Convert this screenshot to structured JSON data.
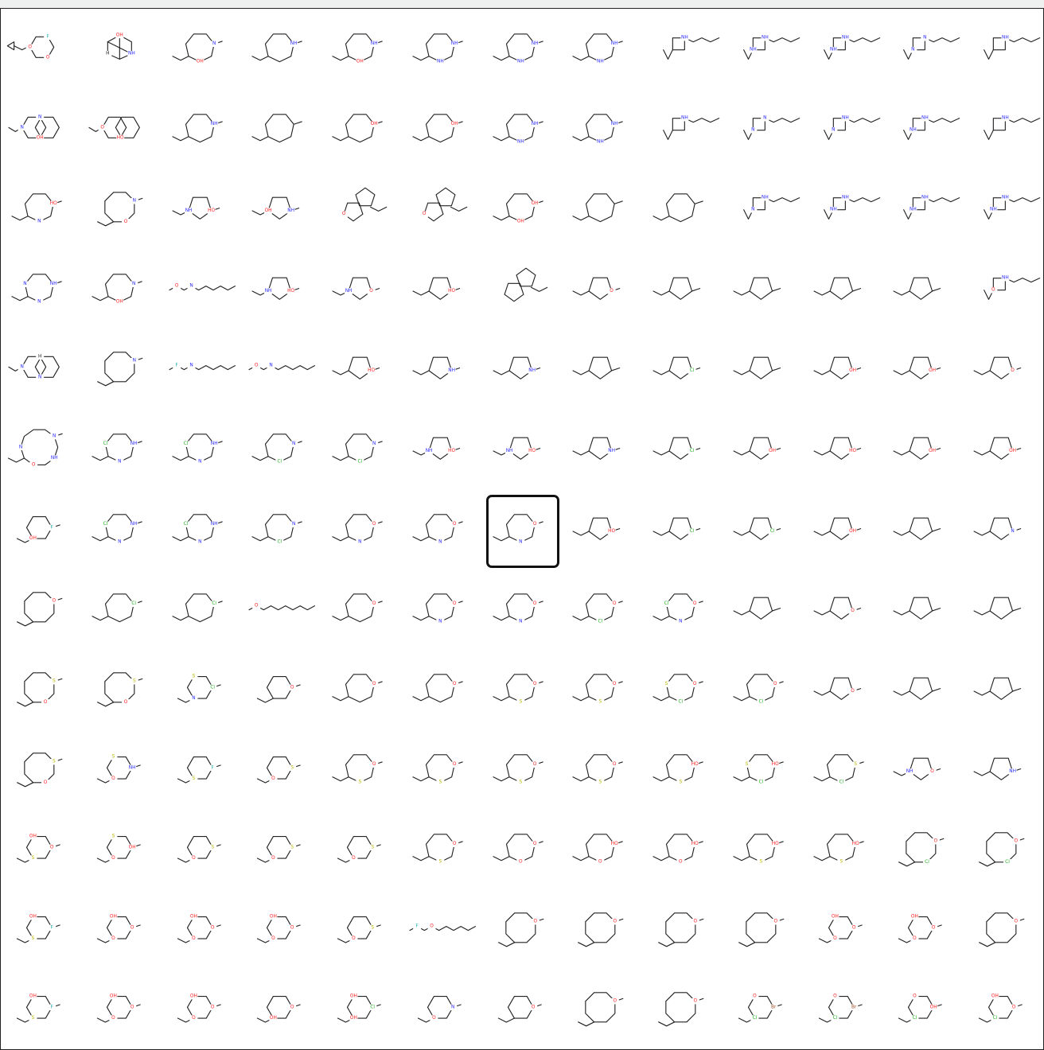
{
  "grid": {
    "rows": 13,
    "cols": 13,
    "selected": {
      "row": 6,
      "col": 6
    }
  },
  "colors": {
    "bond": "#222222",
    "N": "#2b2bff",
    "O": "#ff2020",
    "S": "#b8b800",
    "Cl": "#22b022",
    "F": "#22b0b0",
    "Br": "#a0522d",
    "highlight": "#111111"
  },
  "cells": [
    {
      "shape": "cyclopropyl",
      "labels": [
        "O",
        "O",
        "F"
      ]
    },
    {
      "shape": "cage",
      "labels": [
        "OH",
        "NH",
        "H"
      ]
    },
    {
      "shape": "ring7",
      "labels": [
        "N",
        "OH"
      ]
    },
    {
      "shape": "ring7",
      "labels": [
        "NH"
      ]
    },
    {
      "shape": "ring7",
      "labels": [
        "NH",
        "OH"
      ]
    },
    {
      "shape": "ring7",
      "labels": [
        "NH",
        "NH"
      ]
    },
    {
      "shape": "ring7",
      "labels": [
        "NH",
        "NH"
      ]
    },
    {
      "shape": "ring7",
      "labels": [
        "NH",
        "NH"
      ]
    },
    {
      "shape": "ring4",
      "labels": [
        "NH"
      ]
    },
    {
      "shape": "ring4",
      "labels": [
        "NH",
        "NH",
        "NH"
      ]
    },
    {
      "shape": "ring4",
      "labels": [
        "NH",
        "NH",
        "NH"
      ]
    },
    {
      "shape": "ring4",
      "labels": [
        "NH",
        "N",
        "N"
      ]
    },
    {
      "shape": "ring4",
      "labels": [
        "NH"
      ]
    },
    {
      "shape": "bicyclic",
      "labels": [
        "OH",
        "N",
        "N"
      ]
    },
    {
      "shape": "bicyclic",
      "labels": [
        "HO",
        "O"
      ]
    },
    {
      "shape": "ring7",
      "labels": [
        "NH"
      ]
    },
    {
      "shape": "ring7",
      "labels": []
    },
    {
      "shape": "ring7",
      "labels": [
        "OH"
      ]
    },
    {
      "shape": "ring7",
      "labels": [
        "OH"
      ]
    },
    {
      "shape": "ring7",
      "labels": [
        "NH",
        "NH"
      ]
    },
    {
      "shape": "ring7",
      "labels": [
        "NH",
        "NH"
      ]
    },
    {
      "shape": "ring4",
      "labels": [
        "NH"
      ]
    },
    {
      "shape": "ring4",
      "labels": [
        "NH",
        "N",
        "N"
      ]
    },
    {
      "shape": "ring4",
      "labels": [
        "NH",
        "N"
      ]
    },
    {
      "shape": "ring4",
      "labels": [
        "NH",
        "NH"
      ]
    },
    {
      "shape": "ring4",
      "labels": [
        "NH"
      ]
    },
    {
      "shape": "ring7",
      "labels": [
        "HO",
        "N"
      ]
    },
    {
      "shape": "ring8",
      "labels": [
        "N",
        "O"
      ]
    },
    {
      "shape": "ring5",
      "labels": [
        "HO",
        "NH"
      ]
    },
    {
      "shape": "ring5",
      "labels": [
        "NH",
        "OH"
      ]
    },
    {
      "shape": "spiro",
      "labels": [
        "O"
      ]
    },
    {
      "shape": "spiro",
      "labels": [
        "O"
      ]
    },
    {
      "shape": "ring7",
      "labels": [
        "OH",
        "OH"
      ]
    },
    {
      "shape": "ring7",
      "labels": []
    },
    {
      "shape": "ring7",
      "labels": []
    },
    {
      "shape": "ring4",
      "labels": [
        "NH",
        "N"
      ]
    },
    {
      "shape": "ring4",
      "labels": [
        "NH",
        "NH"
      ]
    },
    {
      "shape": "ring4",
      "labels": [
        "NH",
        "NH"
      ]
    },
    {
      "shape": "ring4",
      "labels": [
        "NH",
        "NH"
      ]
    },
    {
      "shape": "ring7",
      "labels": [
        "NH",
        "N",
        "N"
      ]
    },
    {
      "shape": "ring7",
      "labels": [
        "N",
        "OH"
      ]
    },
    {
      "shape": "chain",
      "labels": [
        "O",
        "N"
      ]
    },
    {
      "shape": "ring5",
      "labels": [
        "HO",
        "NH"
      ]
    },
    {
      "shape": "ring5",
      "labels": [
        "O",
        "NH"
      ]
    },
    {
      "shape": "ring5",
      "labels": [
        "HO"
      ]
    },
    {
      "shape": "spiro",
      "labels": []
    },
    {
      "shape": "ring5",
      "labels": [
        "O"
      ]
    },
    {
      "shape": "ring5",
      "labels": []
    },
    {
      "shape": "ring5",
      "labels": []
    },
    {
      "shape": "ring5",
      "labels": []
    },
    {
      "shape": "ring5",
      "labels": []
    },
    {
      "shape": "ring4",
      "labels": [
        "NH",
        "O"
      ]
    },
    {
      "shape": "bicyclic",
      "labels": [
        "N",
        "N",
        "H"
      ]
    },
    {
      "shape": "ring8",
      "labels": [
        "N"
      ]
    },
    {
      "shape": "chain",
      "labels": [
        "F",
        "N"
      ]
    },
    {
      "shape": "chain",
      "labels": [
        "O",
        "N"
      ]
    },
    {
      "shape": "ring5",
      "labels": [
        "HO"
      ]
    },
    {
      "shape": "ring5",
      "labels": [
        "NH"
      ]
    },
    {
      "shape": "ring5",
      "labels": [
        "NH"
      ]
    },
    {
      "shape": "ring5",
      "labels": []
    },
    {
      "shape": "ring5",
      "labels": [
        "Cl"
      ]
    },
    {
      "shape": "ring5",
      "labels": []
    },
    {
      "shape": "ring5",
      "labels": [
        "OH"
      ]
    },
    {
      "shape": "ring5",
      "labels": [
        "OH"
      ]
    },
    {
      "shape": "ring5",
      "labels": [
        "O"
      ]
    },
    {
      "shape": "ring10",
      "labels": [
        "N",
        "NH",
        "O",
        "N"
      ]
    },
    {
      "shape": "ring7",
      "labels": [
        "NH",
        "N",
        "Cl"
      ]
    },
    {
      "shape": "ring7",
      "labels": [
        "NH",
        "N",
        "Cl"
      ]
    },
    {
      "shape": "ring7",
      "labels": [
        "N",
        "Cl"
      ]
    },
    {
      "shape": "ring7",
      "labels": [
        "N",
        "Cl"
      ]
    },
    {
      "shape": "ring5",
      "labels": [
        "HO",
        "NH"
      ]
    },
    {
      "shape": "ring5",
      "labels": [
        "HO",
        "NH"
      ]
    },
    {
      "shape": "ring5",
      "labels": [
        "NH"
      ]
    },
    {
      "shape": "ring5",
      "labels": [
        "Cl"
      ]
    },
    {
      "shape": "ring5",
      "labels": [
        "OH"
      ]
    },
    {
      "shape": "ring5",
      "labels": [
        "HO"
      ]
    },
    {
      "shape": "ring5",
      "labels": [
        "OH"
      ]
    },
    {
      "shape": "ring5",
      "labels": [
        "OH"
      ]
    },
    {
      "shape": "ring6",
      "labels": [
        "F",
        "OH"
      ]
    },
    {
      "shape": "ring7",
      "labels": [
        "NH",
        "N",
        "Cl"
      ]
    },
    {
      "shape": "ring7",
      "labels": [
        "NH",
        "N",
        "Cl"
      ]
    },
    {
      "shape": "ring7",
      "labels": [
        "N",
        "Cl"
      ]
    },
    {
      "shape": "ring7",
      "labels": [
        "O",
        "N"
      ]
    },
    {
      "shape": "ring7",
      "labels": [
        "O",
        "N"
      ]
    },
    {
      "shape": "ring7",
      "labels": [
        "O",
        "N"
      ]
    },
    {
      "shape": "ring5",
      "labels": [
        "HO"
      ]
    },
    {
      "shape": "ring5",
      "labels": [
        "Cl"
      ]
    },
    {
      "shape": "ring5",
      "labels": [
        "Cl"
      ]
    },
    {
      "shape": "ring5",
      "labels": [
        "OH"
      ]
    },
    {
      "shape": "ring5",
      "labels": []
    },
    {
      "shape": "ring5",
      "labels": [
        "N"
      ]
    },
    {
      "shape": "ring8",
      "labels": [
        "O"
      ]
    },
    {
      "shape": "ring7",
      "labels": [
        "Cl"
      ]
    },
    {
      "shape": "ring7",
      "labels": [
        "Cl"
      ]
    },
    {
      "shape": "chain",
      "labels": [
        "O"
      ]
    },
    {
      "shape": "ring7",
      "labels": [
        "O"
      ]
    },
    {
      "shape": "ring7",
      "labels": [
        "O",
        "N"
      ]
    },
    {
      "shape": "ring7",
      "labels": [
        "O",
        "N"
      ]
    },
    {
      "shape": "ring7",
      "labels": [
        "O",
        "Cl"
      ]
    },
    {
      "shape": "ring7",
      "labels": [
        "O",
        "N",
        "Cl"
      ]
    },
    {
      "shape": "ring5",
      "labels": []
    },
    {
      "shape": "ring5",
      "labels": [
        "O"
      ]
    },
    {
      "shape": "ring5",
      "labels": []
    },
    {
      "shape": "ring5",
      "labels": []
    },
    {
      "shape": "ring8",
      "labels": [
        "S",
        "O"
      ]
    },
    {
      "shape": "ring8",
      "labels": [
        "S",
        "O"
      ]
    },
    {
      "shape": "ring6",
      "labels": [
        "Cl",
        "N",
        "S"
      ]
    },
    {
      "shape": "ring6",
      "labels": [
        "O"
      ]
    },
    {
      "shape": "ring7",
      "labels": [
        "O"
      ]
    },
    {
      "shape": "ring7",
      "labels": [
        "O"
      ]
    },
    {
      "shape": "ring7",
      "labels": [
        "O",
        "S"
      ]
    },
    {
      "shape": "ring7",
      "labels": [
        "O",
        "S"
      ]
    },
    {
      "shape": "ring7",
      "labels": [
        "O",
        "Cl",
        "S"
      ]
    },
    {
      "shape": "ring7",
      "labels": [
        "O",
        "Cl"
      ]
    },
    {
      "shape": "ring5",
      "labels": [
        "O"
      ]
    },
    {
      "shape": "ring5",
      "labels": []
    },
    {
      "shape": "ring5",
      "labels": []
    },
    {
      "shape": "ring8",
      "labels": [
        "S",
        "O"
      ]
    },
    {
      "shape": "ring6",
      "labels": [
        "NH",
        "O",
        "S"
      ]
    },
    {
      "shape": "ring6",
      "labels": [
        "F",
        "S"
      ]
    },
    {
      "shape": "ring6",
      "labels": [
        "S",
        "O"
      ]
    },
    {
      "shape": "ring7",
      "labels": [
        "O",
        "S"
      ]
    },
    {
      "shape": "ring7",
      "labels": [
        "O",
        "S"
      ]
    },
    {
      "shape": "ring7",
      "labels": [
        "O",
        "S"
      ]
    },
    {
      "shape": "ring7",
      "labels": [
        "O",
        "S"
      ]
    },
    {
      "shape": "ring7",
      "labels": [
        "HO",
        "S"
      ]
    },
    {
      "shape": "ring7",
      "labels": [
        "HO",
        "Cl",
        "S"
      ]
    },
    {
      "shape": "ring7",
      "labels": [
        "S",
        "Cl"
      ]
    },
    {
      "shape": "ring5",
      "labels": [
        "O",
        "NH"
      ]
    },
    {
      "shape": "ring5",
      "labels": [
        "NH"
      ]
    },
    {
      "shape": "ring6",
      "labels": [
        "O",
        "S",
        "OH"
      ]
    },
    {
      "shape": "ring6",
      "labels": [
        "Br",
        "O",
        "S",
        "OH"
      ]
    },
    {
      "shape": "ring6",
      "labels": [
        "S",
        "O"
      ]
    },
    {
      "shape": "ring6",
      "labels": [
        "S",
        "O"
      ]
    },
    {
      "shape": "ring6",
      "labels": [
        "S",
        "O"
      ]
    },
    {
      "shape": "ring7",
      "labels": [
        "O",
        "S"
      ]
    },
    {
      "shape": "ring7",
      "labels": [
        "O",
        "O"
      ]
    },
    {
      "shape": "ring7",
      "labels": [
        "HO",
        "O"
      ]
    },
    {
      "shape": "ring7",
      "labels": [
        "HO",
        "O"
      ]
    },
    {
      "shape": "ring7",
      "labels": [
        "HO",
        "S"
      ]
    },
    {
      "shape": "ring7",
      "labels": [
        "HO",
        "S"
      ]
    },
    {
      "shape": "ring8",
      "labels": [
        "O",
        "Cl"
      ]
    },
    {
      "shape": "ring8",
      "labels": [
        "O",
        "Cl"
      ]
    },
    {
      "shape": "ring6",
      "labels": [
        "F",
        "S",
        "OH"
      ]
    },
    {
      "shape": "ring6",
      "labels": [
        "O",
        "O",
        "OH"
      ]
    },
    {
      "shape": "ring6",
      "labels": [
        "O",
        "O",
        "OH"
      ]
    },
    {
      "shape": "ring6",
      "labels": [
        "O",
        "O",
        "OH"
      ]
    },
    {
      "shape": "ring6",
      "labels": [
        "S",
        "O"
      ]
    },
    {
      "shape": "chain",
      "labels": [
        "F",
        "O"
      ]
    },
    {
      "shape": "ring8",
      "labels": [
        "O"
      ]
    },
    {
      "shape": "ring8",
      "labels": [
        "O"
      ]
    },
    {
      "shape": "ring8",
      "labels": [
        "O"
      ]
    },
    {
      "shape": "ring8",
      "labels": [
        "O"
      ]
    },
    {
      "shape": "ring6",
      "labels": [
        "O",
        "O",
        "OH"
      ]
    },
    {
      "shape": "ring6",
      "labels": [
        "O",
        "O",
        "OH"
      ]
    },
    {
      "shape": "ring8",
      "labels": [
        "O"
      ]
    },
    {
      "shape": "ring6",
      "labels": [
        "F",
        "S",
        "OH"
      ]
    },
    {
      "shape": "ring6",
      "labels": [
        "O",
        "O",
        "OH"
      ]
    },
    {
      "shape": "ring6",
      "labels": [
        "O",
        "O",
        "OH"
      ]
    },
    {
      "shape": "ring6",
      "labels": [
        "O",
        "OH"
      ]
    },
    {
      "shape": "ring6",
      "labels": [
        "N",
        "OH",
        "OH",
        "Cl"
      ]
    },
    {
      "shape": "ring6",
      "labels": [
        "N",
        "O"
      ]
    },
    {
      "shape": "ring6",
      "labels": [
        "O"
      ]
    },
    {
      "shape": "ring8",
      "labels": [
        "O"
      ]
    },
    {
      "shape": "ring8",
      "labels": [
        "O"
      ]
    },
    {
      "shape": "ring6",
      "labels": [
        "O",
        "Cl",
        "O",
        "Br"
      ]
    },
    {
      "shape": "ring6",
      "labels": [
        "O",
        "Cl",
        "O",
        "Br"
      ]
    },
    {
      "shape": "ring6",
      "labels": [
        "O",
        "Cl",
        "O",
        "OH"
      ]
    },
    {
      "shape": "ring6",
      "labels": [
        "O",
        "Cl",
        "OH"
      ]
    }
  ]
}
